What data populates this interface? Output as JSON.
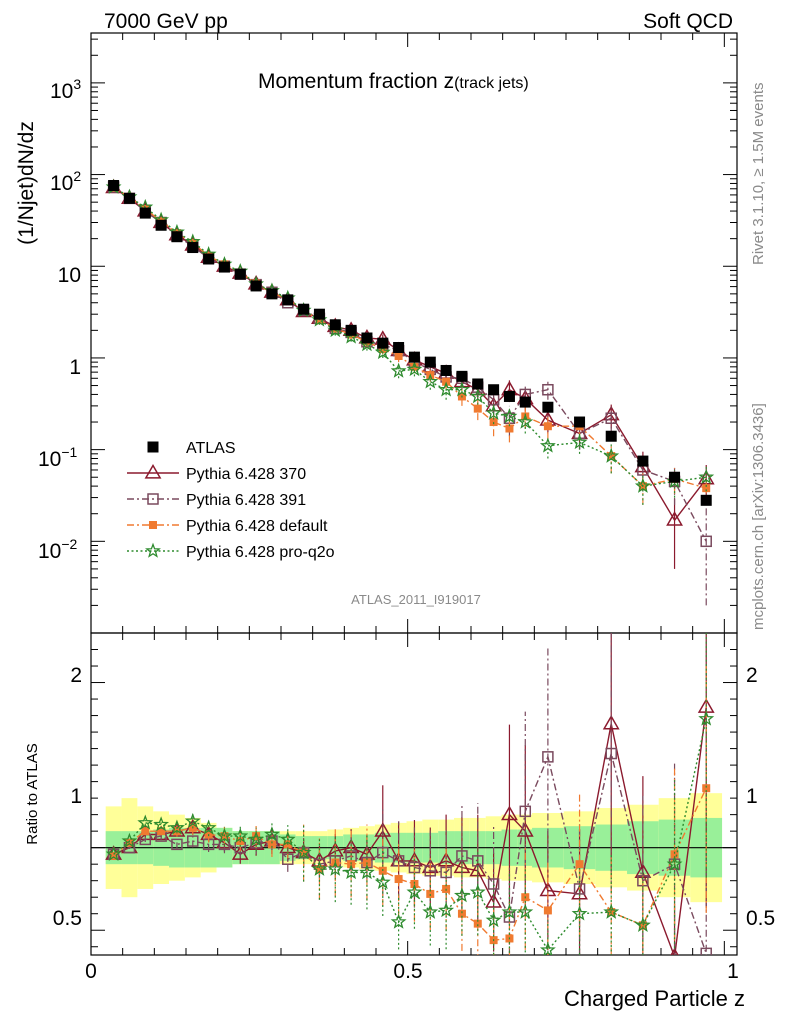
{
  "header": {
    "left": "7000 GeV pp",
    "right": "Soft QCD"
  },
  "side_labels": {
    "rivet": "Rivet 3.1.10, ≥ 1.5M events",
    "mcplots": "mcplots.cern.ch [arXiv:1306.3436]"
  },
  "chart_data": {
    "type": "scatter",
    "title": "Momentum fraction z",
    "title_sub": "(track jets)",
    "analysis_id": "ATLAS_2011_I919017",
    "xlabel": "Charged Particle z",
    "ylabel_main": "(1/Njet)dN/dz",
    "ylabel_ratio": "Ratio to ATLAS",
    "xlim": [
      0,
      1.02
    ],
    "ylim_main": [
      0.001,
      3500
    ],
    "yscale_main": "log",
    "ylim_ratio": [
      0.35,
      2.3
    ],
    "x_ticks": [
      "0",
      "0.5",
      "1"
    ],
    "y_ticks_main": [
      "1",
      "10",
      "10^-2",
      "10^-1",
      "10^2",
      "10^3"
    ],
    "y_ticks_ratio": [
      "0.5",
      "1",
      "2"
    ],
    "legend_position": "lower-left",
    "x": [
      0.0357,
      0.0607,
      0.0857,
      0.1107,
      0.1357,
      0.1607,
      0.1857,
      0.2107,
      0.2357,
      0.2607,
      0.2857,
      0.3107,
      0.3357,
      0.3607,
      0.3857,
      0.4107,
      0.4357,
      0.4607,
      0.4857,
      0.5107,
      0.5357,
      0.5607,
      0.5857,
      0.6107,
      0.6357,
      0.6607,
      0.6857,
      0.7214,
      0.7714,
      0.8214,
      0.8714,
      0.9214,
      0.9714
    ],
    "band": {
      "green_halfwidth": [
        0.1,
        0.1,
        0.1,
        0.11,
        0.12,
        0.12,
        0.12,
        0.12,
        0.1,
        0.1,
        0.1,
        0.08,
        0.07,
        0.07,
        0.07,
        0.08,
        0.08,
        0.09,
        0.09,
        0.09,
        0.09,
        0.1,
        0.1,
        0.1,
        0.1,
        0.11,
        0.11,
        0.12,
        0.13,
        0.14,
        0.16,
        0.17,
        0.18
      ],
      "yellow_halfwidth": [
        0.25,
        0.3,
        0.25,
        0.22,
        0.2,
        0.18,
        0.15,
        0.12,
        0.1,
        0.1,
        0.1,
        0.1,
        0.1,
        0.1,
        0.11,
        0.12,
        0.13,
        0.14,
        0.15,
        0.16,
        0.17,
        0.17,
        0.18,
        0.18,
        0.19,
        0.2,
        0.2,
        0.21,
        0.22,
        0.24,
        0.26,
        0.3,
        0.33
      ]
    },
    "series": [
      {
        "name": "ATLAS",
        "color": "#000000",
        "marker": "filled-square",
        "values": [
          76,
          55,
          38,
          28,
          21,
          16,
          12,
          9.8,
          8.2,
          6.1,
          5.0,
          4.3,
          3.4,
          3.0,
          2.3,
          2.0,
          1.65,
          1.45,
          1.3,
          1.02,
          0.9,
          0.73,
          0.63,
          0.52,
          0.45,
          0.38,
          0.33,
          0.29,
          0.2,
          0.14,
          0.075,
          0.05,
          0.028
        ],
        "err_lo": [],
        "err_hi": []
      },
      {
        "name": "Pythia 6.428 370",
        "color": "#8b1a2e",
        "marker": "open-triangle",
        "line": "solid",
        "values": [
          72,
          55,
          40,
          30,
          22,
          17,
          12.5,
          10.0,
          8.4,
          6.4,
          5.2,
          4.3,
          3.2,
          2.7,
          2.2,
          2.0,
          1.65,
          1.6,
          1.2,
          0.95,
          0.8,
          0.68,
          0.55,
          0.45,
          0.3,
          0.45,
          0.36,
          0.21,
          0.15,
          0.24,
          0.065,
          0.017,
          0.048
        ],
        "err_lo": [
          0,
          0,
          0,
          0,
          0,
          0,
          0,
          0,
          0,
          0,
          0,
          0,
          0,
          0,
          0,
          0,
          0,
          0.2,
          0.15,
          0.12,
          0.1,
          0.1,
          0.1,
          0.1,
          0.08,
          0.12,
          0.1,
          0.06,
          0.05,
          0.07,
          0.03,
          0.012,
          0.02
        ],
        "err_hi": [
          0,
          0,
          0,
          0,
          0,
          0,
          0,
          0,
          0,
          0,
          0,
          0,
          0,
          0,
          0,
          0,
          0,
          0.2,
          0.15,
          0.12,
          0.1,
          0.1,
          0.1,
          0.1,
          0.08,
          0.12,
          0.1,
          0.06,
          0.05,
          0.07,
          0.03,
          0.012,
          0.02
        ]
      },
      {
        "name": "Pythia 6.428 391",
        "color": "#7a4a5e",
        "marker": "open-square",
        "line": "dashdot",
        "values": [
          73,
          55,
          40,
          30,
          21.5,
          16.5,
          12.2,
          10.0,
          8.2,
          6.3,
          5.2,
          4.0,
          3.3,
          2.7,
          2.1,
          1.9,
          1.5,
          1.4,
          1.2,
          0.9,
          0.75,
          0.62,
          0.6,
          0.48,
          0.35,
          0.22,
          0.4,
          0.45,
          0.15,
          0.22,
          0.06,
          0.045,
          0.01
        ],
        "err_lo": [
          0,
          0,
          0,
          0,
          0,
          0,
          0,
          0,
          0,
          0,
          0,
          0,
          0,
          0,
          0,
          0,
          0,
          0.2,
          0.15,
          0.12,
          0.1,
          0.1,
          0.1,
          0.1,
          0.1,
          0.08,
          0.12,
          0.1,
          0.05,
          0.07,
          0.025,
          0.02,
          0.008
        ],
        "err_hi": [
          0,
          0,
          0,
          0,
          0,
          0,
          0,
          0,
          0,
          0,
          0,
          0,
          0,
          0,
          0,
          0,
          0,
          0.2,
          0.15,
          0.12,
          0.1,
          0.1,
          0.1,
          0.1,
          0.1,
          0.08,
          0.12,
          0.1,
          0.05,
          0.07,
          0.025,
          0.02,
          0.015
        ]
      },
      {
        "name": "Pythia 6.428 default",
        "color": "#f07a30",
        "marker": "filled-square-small",
        "line": "dashdot",
        "values": [
          72,
          57,
          42,
          31,
          23,
          18,
          13,
          10.5,
          8.5,
          6.5,
          5.1,
          4.4,
          3.3,
          2.6,
          2.1,
          1.8,
          1.5,
          1.25,
          1.05,
          0.8,
          0.65,
          0.55,
          0.38,
          0.28,
          0.2,
          0.17,
          0.23,
          0.18,
          0.18,
          0.085,
          0.04,
          0.048,
          0.038
        ],
        "err_lo": [
          0,
          0,
          0,
          0,
          0,
          0,
          0,
          0,
          0,
          0,
          0,
          0,
          0.3,
          0.3,
          0.25,
          0.2,
          0.2,
          0.15,
          0.15,
          0.12,
          0.1,
          0.1,
          0.08,
          0.07,
          0.06,
          0.05,
          0.06,
          0.05,
          0.05,
          0.03,
          0.015,
          0.015,
          0.012
        ],
        "err_hi": [
          0,
          0,
          0,
          0,
          0,
          0,
          0,
          0,
          0,
          0,
          0,
          0,
          0.3,
          0.3,
          0.25,
          0.2,
          0.2,
          0.15,
          0.15,
          0.12,
          0.1,
          0.1,
          0.08,
          0.07,
          0.06,
          0.05,
          0.06,
          0.05,
          0.05,
          0.03,
          0.015,
          0.015,
          0.012
        ]
      },
      {
        "name": "Pythia 6.428 pro-q2o",
        "color": "#2e8b2e",
        "marker": "star",
        "line": "dotted",
        "values": [
          73,
          57,
          44,
          32,
          23.5,
          18.5,
          13.5,
          10.5,
          8.8,
          6.4,
          5.4,
          4.5,
          3.3,
          2.6,
          2.0,
          1.7,
          1.4,
          1.15,
          0.72,
          0.75,
          0.55,
          0.45,
          0.45,
          0.38,
          0.25,
          0.23,
          0.2,
          0.11,
          0.12,
          0.085,
          0.04,
          0.045,
          0.05
        ],
        "err_lo": [
          0,
          0,
          0,
          0,
          0,
          0,
          0,
          0,
          0,
          0,
          0,
          0,
          0.3,
          0.3,
          0.25,
          0.2,
          0.2,
          0.15,
          0.12,
          0.12,
          0.1,
          0.1,
          0.08,
          0.07,
          0.06,
          0.05,
          0.05,
          0.03,
          0.03,
          0.03,
          0.015,
          0.015,
          0.015
        ],
        "err_hi": [
          0,
          0,
          0,
          0,
          0,
          0,
          0,
          0,
          0,
          0,
          0,
          0,
          0.3,
          0.3,
          0.25,
          0.2,
          0.2,
          0.15,
          0.12,
          0.12,
          0.1,
          0.1,
          0.08,
          0.07,
          0.06,
          0.05,
          0.05,
          0.03,
          0.03,
          0.03,
          0.015,
          0.015,
          0.015
        ]
      }
    ],
    "ratios": {
      "Pythia 6.428 370": [
        0.96,
        1.0,
        1.08,
        1.08,
        1.1,
        1.12,
        1.08,
        1.03,
        0.96,
        1.02,
        1.04,
        1.0,
        0.97,
        0.92,
        0.98,
        1.0,
        0.96,
        1.1,
        0.92,
        0.92,
        0.88,
        0.92,
        0.88,
        0.86,
        0.67,
        1.2,
        1.1,
        0.74,
        0.72,
        1.75,
        0.85,
        0.34,
        1.85
      ],
      "Pythia 6.428 391": [
        0.96,
        1.0,
        1.05,
        1.07,
        1.02,
        1.04,
        1.02,
        1.02,
        1.0,
        1.03,
        1.04,
        0.93,
        0.97,
        0.9,
        0.92,
        0.95,
        0.91,
        0.97,
        0.92,
        0.88,
        0.86,
        0.85,
        0.95,
        0.92,
        0.78,
        0.58,
        1.22,
        1.55,
        0.75,
        1.57,
        0.8,
        0.9,
        0.36
      ],
      "Pythia 6.428 default": [
        0.95,
        1.03,
        1.1,
        1.1,
        1.1,
        1.12,
        1.08,
        1.07,
        1.04,
        1.07,
        1.02,
        1.02,
        0.97,
        0.87,
        0.91,
        0.9,
        0.91,
        0.86,
        0.81,
        0.78,
        0.72,
        0.75,
        0.6,
        0.54,
        0.44,
        0.45,
        0.7,
        0.62,
        0.9,
        0.61,
        0.53,
        0.96,
        1.36
      ],
      "Pythia 6.428 pro-q2o": [
        0.96,
        1.04,
        1.15,
        1.14,
        1.12,
        1.16,
        1.12,
        1.07,
        1.07,
        1.05,
        1.08,
        1.05,
        0.97,
        0.87,
        0.87,
        0.85,
        0.85,
        0.79,
        0.55,
        0.73,
        0.61,
        0.62,
        0.71,
        0.73,
        0.56,
        0.61,
        0.61,
        0.38,
        0.6,
        0.61,
        0.53,
        0.9,
        1.78
      ]
    }
  }
}
